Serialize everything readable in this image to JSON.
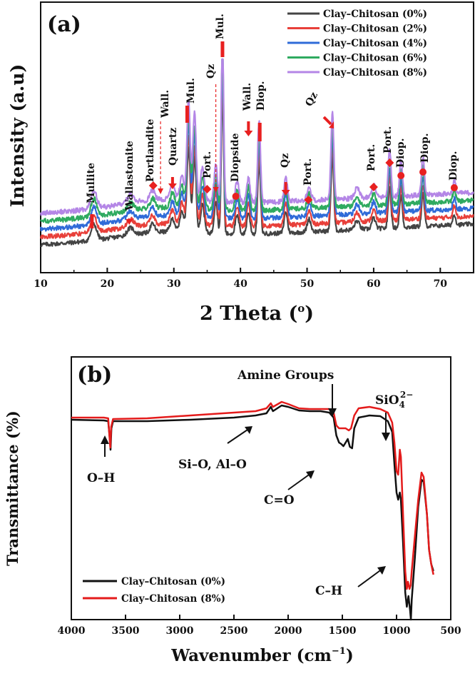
{
  "chart_data": [
    {
      "type": "line",
      "panel_label": "(a)",
      "xlabel": "2 Theta (o)",
      "xlabel_main": "2 Theta (",
      "xlabel_deg": "o",
      "xlabel_close": ")",
      "ylabel": "Intensity (a.u)",
      "xlim": [
        10,
        75
      ],
      "xticks": [
        "10",
        "20",
        "30",
        "40",
        "50",
        "60",
        "70"
      ],
      "legend_position": "top-right",
      "series": [
        {
          "name": "Clay–Chitosan (0%)",
          "color": "#444444",
          "offset": 0
        },
        {
          "name": "Clay–Chitosan (2%)",
          "color": "#e8403a",
          "offset": 1
        },
        {
          "name": "Clay–Chitosan (4%)",
          "color": "#2f6bd8",
          "offset": 2
        },
        {
          "name": "Clay–Chitosan (6%)",
          "color": "#2faa60",
          "offset": 3
        },
        {
          "name": "Clay–Chitosan (8%)",
          "color": "#b486e6",
          "offset": 4
        }
      ],
      "peaks": [
        {
          "pos": 18.0,
          "height": 22,
          "width": 0.6
        },
        {
          "pos": 23.5,
          "height": 10,
          "width": 0.7
        },
        {
          "pos": 26.8,
          "height": 12,
          "width": 0.5
        },
        {
          "pos": 29.8,
          "height": 18,
          "width": 0.5
        },
        {
          "pos": 31.2,
          "height": 30,
          "width": 0.4
        },
        {
          "pos": 32.2,
          "height": 120,
          "width": 0.35
        },
        {
          "pos": 33.1,
          "height": 105,
          "width": 0.35
        },
        {
          "pos": 34.3,
          "height": 40,
          "width": 0.4
        },
        {
          "pos": 36.3,
          "height": 45,
          "width": 0.35
        },
        {
          "pos": 37.3,
          "height": 205,
          "width": 0.25
        },
        {
          "pos": 39.5,
          "height": 25,
          "width": 0.4
        },
        {
          "pos": 41.2,
          "height": 30,
          "width": 0.35
        },
        {
          "pos": 42.8,
          "height": 100,
          "width": 0.3
        },
        {
          "pos": 46.8,
          "height": 30,
          "width": 0.35
        },
        {
          "pos": 50.3,
          "height": 18,
          "width": 0.4
        },
        {
          "pos": 53.8,
          "height": 105,
          "width": 0.3
        },
        {
          "pos": 57.5,
          "height": 12,
          "width": 0.5
        },
        {
          "pos": 60.0,
          "height": 15,
          "width": 0.4
        },
        {
          "pos": 62.4,
          "height": 58,
          "width": 0.3
        },
        {
          "pos": 64.1,
          "height": 45,
          "width": 0.3
        },
        {
          "pos": 67.4,
          "height": 45,
          "width": 0.3
        },
        {
          "pos": 72.1,
          "height": 15,
          "width": 0.3
        }
      ],
      "annotations": [
        {
          "text": "Mullite",
          "pos": 17.7,
          "marker": "bar"
        },
        {
          "text": "Wallastonite",
          "pos": 23.3,
          "marker": "triangle"
        },
        {
          "text": "Portlandite",
          "pos": 26.9,
          "marker": "diamond"
        },
        {
          "text": "Wall.",
          "pos": 28.0,
          "marker": "dashed-arrow"
        },
        {
          "text": "Quartz",
          "pos": 29.8,
          "marker": "arrow"
        },
        {
          "text": "Mul.",
          "pos": 32.0,
          "marker": "bar"
        },
        {
          "text": "Port.",
          "pos": 35.0,
          "marker": "diamond"
        },
        {
          "text": "Qz",
          "pos": 36.3,
          "marker": "dashed-arrow"
        },
        {
          "text": "Mul.",
          "pos": 37.3,
          "marker": "bar"
        },
        {
          "text": "Diopside",
          "pos": 39.3,
          "marker": "dot"
        },
        {
          "text": "Wall.",
          "pos": 41.2,
          "marker": "arrow"
        },
        {
          "text": "Diop.",
          "pos": 42.9,
          "marker": "bar"
        },
        {
          "text": "Qz",
          "pos": 46.8,
          "marker": "arrow"
        },
        {
          "text": "Port.",
          "pos": 50.2,
          "marker": "diamond"
        },
        {
          "text": "Qz",
          "pos": 53.8,
          "marker": "arrow"
        },
        {
          "text": "Port.",
          "pos": 60.0,
          "marker": "diamond"
        },
        {
          "text": "Port.",
          "pos": 62.4,
          "marker": "diamond"
        },
        {
          "text": "Diop.",
          "pos": 64.1,
          "marker": "dot"
        },
        {
          "text": "Diop.",
          "pos": 67.4,
          "marker": "dot"
        },
        {
          "text": "Diop.",
          "pos": 72.1,
          "marker": "dot"
        }
      ]
    },
    {
      "type": "line",
      "panel_label": "(b)",
      "xlabel": "Wavenumber (cm-1)",
      "xlabel_main": "Wavenumber (cm",
      "xlabel_sup": "−1",
      "xlabel_close": ")",
      "ylabel": "Transmittance (%)",
      "xlim": [
        4000,
        500
      ],
      "xticks": [
        "4000",
        "3500",
        "3000",
        "2500",
        "2000",
        "1500",
        "1000",
        "500"
      ],
      "legend_position": "bottom-left",
      "series": [
        {
          "name": "Clay–Chitosan (0%)",
          "color": "#111111"
        },
        {
          "name": "Clay–Chitosan (8%)",
          "color": "#e41b1b"
        }
      ],
      "annotations": [
        {
          "text": "O–H",
          "wavenumber": 3640
        },
        {
          "text": "Amine Groups",
          "wavenumber": 1460
        },
        {
          "text": "Si–O,  Al–O",
          "wavenumber": 2050
        },
        {
          "text": "C=O",
          "wavenumber": 1550
        },
        {
          "text": "SiO",
          "sub": "4",
          "sup": "2−",
          "wavenumber": 970
        },
        {
          "text": "C–H",
          "wavenumber": 930
        }
      ]
    }
  ]
}
